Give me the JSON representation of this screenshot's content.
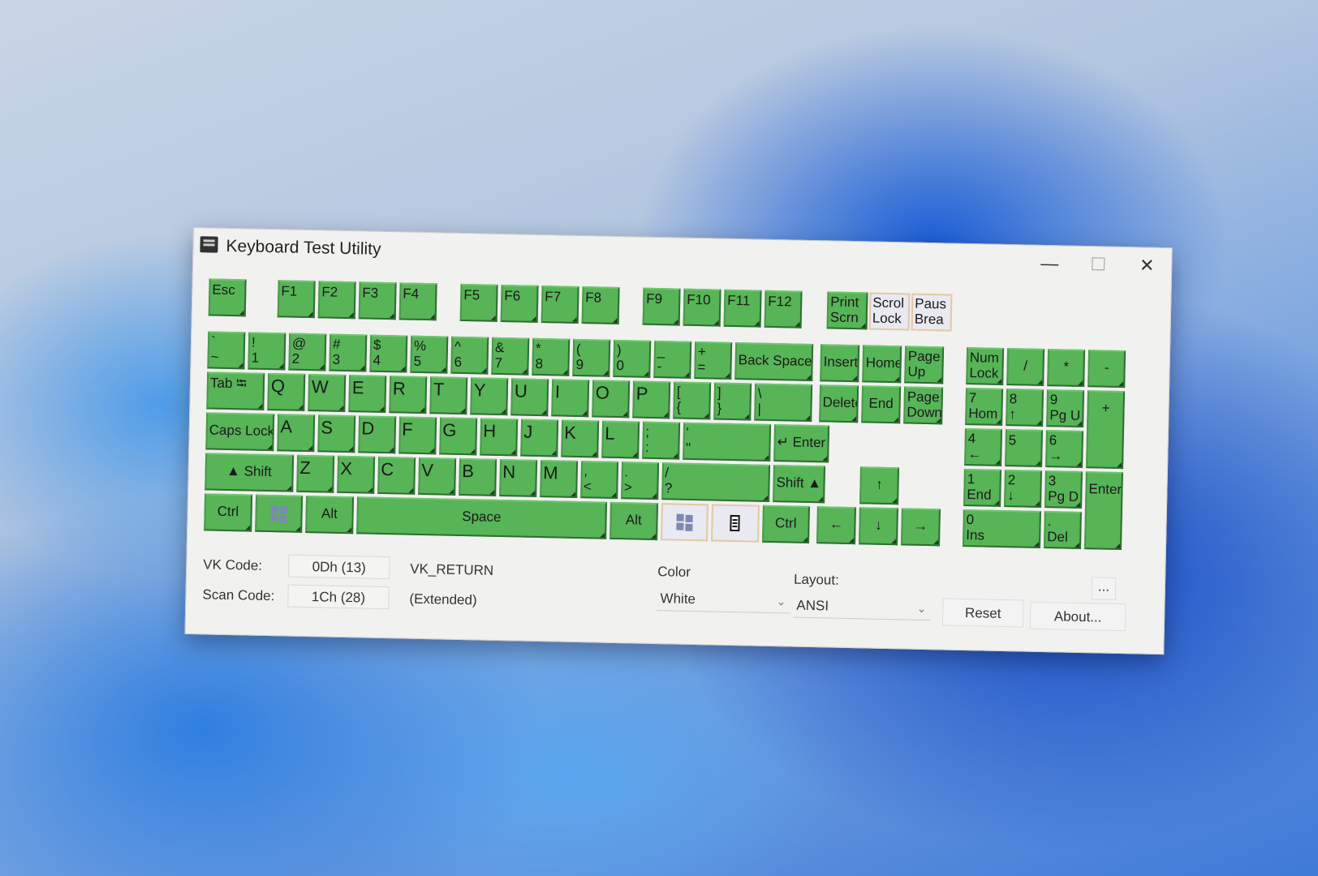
{
  "window": {
    "title": "Keyboard Test Utility",
    "minimize": "—",
    "maximize": "☐",
    "close": "✕"
  },
  "colors": {
    "pressed": "#57b457",
    "unpressed": "#e9e9f1"
  },
  "keyboard": {
    "function_row": [
      {
        "label": "Esc",
        "pressed": true
      },
      {
        "label": "F1",
        "pressed": true
      },
      {
        "label": "F2",
        "pressed": true
      },
      {
        "label": "F3",
        "pressed": true
      },
      {
        "label": "F4",
        "pressed": true
      },
      {
        "label": "F5",
        "pressed": true
      },
      {
        "label": "F6",
        "pressed": true
      },
      {
        "label": "F7",
        "pressed": true
      },
      {
        "label": "F8",
        "pressed": true
      },
      {
        "label": "F9",
        "pressed": true
      },
      {
        "label": "F10",
        "pressed": true
      },
      {
        "label": "F11",
        "pressed": true
      },
      {
        "label": "F12",
        "pressed": true
      },
      {
        "label": "Print",
        "sub": "Scrn",
        "pressed": true
      },
      {
        "label": "Scrol",
        "sub": "Lock",
        "pressed": false
      },
      {
        "label": "Paus",
        "sub": "Brea",
        "pressed": false
      }
    ],
    "rows": [
      [
        {
          "label": "`",
          "sub": "~",
          "pressed": true
        },
        {
          "label": "!",
          "sub": "1",
          "pressed": true
        },
        {
          "label": "@",
          "sub": "2",
          "pressed": true
        },
        {
          "label": "#",
          "sub": "3",
          "pressed": true
        },
        {
          "label": "$",
          "sub": "4",
          "pressed": true
        },
        {
          "label": "%",
          "sub": "5",
          "pressed": true
        },
        {
          "label": "^",
          "sub": "6",
          "pressed": true
        },
        {
          "label": "&",
          "sub": "7",
          "pressed": true
        },
        {
          "label": "*",
          "sub": "8",
          "pressed": true
        },
        {
          "label": "(",
          "sub": "9",
          "pressed": true
        },
        {
          "label": ")",
          "sub": "0",
          "pressed": true
        },
        {
          "label": "_",
          "sub": "-",
          "pressed": true
        },
        {
          "label": "+",
          "sub": "=",
          "pressed": true
        },
        {
          "label": "Back Space",
          "pressed": true,
          "center": true
        }
      ],
      [
        {
          "label": "Tab ⭾",
          "pressed": true
        },
        {
          "label": "Q",
          "pressed": true,
          "big": true
        },
        {
          "label": "W",
          "pressed": true,
          "big": true
        },
        {
          "label": "E",
          "pressed": true,
          "big": true
        },
        {
          "label": "R",
          "pressed": true,
          "big": true
        },
        {
          "label": "T",
          "pressed": true,
          "big": true
        },
        {
          "label": "Y",
          "pressed": true,
          "big": true
        },
        {
          "label": "U",
          "pressed": true,
          "big": true
        },
        {
          "label": "I",
          "pressed": true,
          "big": true
        },
        {
          "label": "O",
          "pressed": true,
          "big": true
        },
        {
          "label": "P",
          "pressed": true,
          "big": true
        },
        {
          "label": "[",
          "sub": "{",
          "pressed": true
        },
        {
          "label": "]",
          "sub": "}",
          "pressed": true
        },
        {
          "label": "\\",
          "sub": "|",
          "pressed": true
        }
      ],
      [
        {
          "label": "Caps Lock",
          "pressed": true,
          "center": true
        },
        {
          "label": "A",
          "pressed": true,
          "big": true
        },
        {
          "label": "S",
          "pressed": true,
          "big": true
        },
        {
          "label": "D",
          "pressed": true,
          "big": true
        },
        {
          "label": "F",
          "pressed": true,
          "big": true
        },
        {
          "label": "G",
          "pressed": true,
          "big": true
        },
        {
          "label": "H",
          "pressed": true,
          "big": true
        },
        {
          "label": "J",
          "pressed": true,
          "big": true
        },
        {
          "label": "K",
          "pressed": true,
          "big": true
        },
        {
          "label": "L",
          "pressed": true,
          "big": true
        },
        {
          "label": ";",
          "sub": ":",
          "pressed": true
        },
        {
          "label": "'",
          "sub": "\"",
          "pressed": true
        },
        {
          "label": "↵ Enter",
          "pressed": true,
          "center": true
        }
      ],
      [
        {
          "label": "▲   Shift",
          "pressed": true,
          "center": true
        },
        {
          "label": "Z",
          "pressed": true,
          "big": true
        },
        {
          "label": "X",
          "pressed": true,
          "big": true
        },
        {
          "label": "C",
          "pressed": true,
          "big": true
        },
        {
          "label": "V",
          "pressed": true,
          "big": true
        },
        {
          "label": "B",
          "pressed": true,
          "big": true
        },
        {
          "label": "N",
          "pressed": true,
          "big": true
        },
        {
          "label": "M",
          "pressed": true,
          "big": true
        },
        {
          "label": ",",
          "sub": "<",
          "pressed": true
        },
        {
          "label": ".",
          "sub": ">",
          "pressed": true
        },
        {
          "label": "/",
          "sub": "?",
          "pressed": true
        },
        {
          "label": "Shift   ▲",
          "pressed": true,
          "center": true
        }
      ],
      [
        {
          "label": "Ctrl",
          "pressed": true,
          "center": true
        },
        {
          "icon": "windows-logo",
          "pressed": true
        },
        {
          "label": "Alt",
          "pressed": true,
          "center": true
        },
        {
          "label": "Space",
          "pressed": true,
          "center": true
        },
        {
          "label": "Alt",
          "pressed": true,
          "center": true
        },
        {
          "icon": "windows-logo",
          "pressed": false
        },
        {
          "icon": "context-menu",
          "pressed": false
        },
        {
          "label": "Ctrl",
          "pressed": true,
          "center": true
        }
      ]
    ],
    "navigation": [
      {
        "label": "Insert",
        "pressed": true,
        "center": true
      },
      {
        "label": "Home",
        "pressed": true,
        "center": true
      },
      {
        "label": "Page",
        "sub": "Up",
        "pressed": true
      },
      {
        "label": "Delete",
        "pressed": true,
        "center": true
      },
      {
        "label": "End",
        "pressed": true,
        "center": true
      },
      {
        "label": "Page",
        "sub": "Down",
        "pressed": true
      },
      {
        "label": "↑",
        "pressed": true,
        "center": true
      },
      {
        "label": "←",
        "pressed": true,
        "center": true
      },
      {
        "label": "↓",
        "pressed": true,
        "center": true
      },
      {
        "label": "→",
        "pressed": true,
        "center": true
      }
    ],
    "numpad": [
      {
        "label": "Num",
        "sub": "Lock",
        "pressed": true
      },
      {
        "label": "/",
        "pressed": true,
        "center": true
      },
      {
        "label": "*",
        "pressed": true,
        "center": true
      },
      {
        "label": "-",
        "pressed": true,
        "center": true
      },
      {
        "label": "7",
        "sub": "Hom",
        "pressed": true
      },
      {
        "label": "8",
        "sub": "↑",
        "pressed": true
      },
      {
        "label": "9",
        "sub": "Pg U",
        "pressed": true
      },
      {
        "label": "+",
        "pressed": true,
        "center": true
      },
      {
        "label": "4",
        "sub": "←",
        "pressed": true
      },
      {
        "label": "5",
        "pressed": true
      },
      {
        "label": "6",
        "sub": "→",
        "pressed": true
      },
      {
        "label": "1",
        "sub": "End",
        "pressed": true
      },
      {
        "label": "2",
        "sub": "↓",
        "pressed": true
      },
      {
        "label": "3",
        "sub": "Pg D",
        "pressed": true
      },
      {
        "label": "Enter",
        "pressed": true,
        "center": true
      },
      {
        "label": "0",
        "sub": "Ins",
        "pressed": true
      },
      {
        "label": ".",
        "sub": "Del",
        "pressed": true
      }
    ]
  },
  "info": {
    "vk_label": "VK Code:",
    "vk_value": "0Dh (13)",
    "vk_name": "VK_RETURN",
    "scan_label": "Scan Code:",
    "scan_value": "1Ch (28)",
    "scan_note": "(Extended)",
    "color_label": "Color",
    "color_value": "White",
    "layout_label": "Layout:",
    "layout_value": "ANSI",
    "more_button": "...",
    "reset_button": "Reset",
    "about_button": "About..."
  }
}
